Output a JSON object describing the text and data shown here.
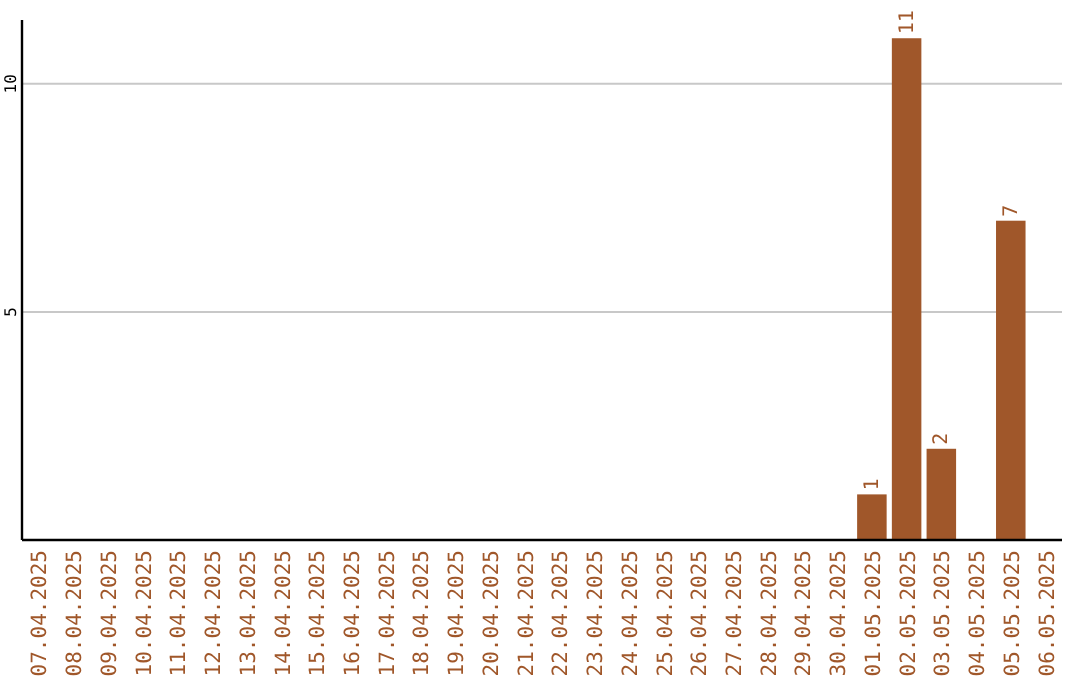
{
  "chart_data": {
    "type": "bar",
    "categories": [
      "07.04.2025",
      "08.04.2025",
      "09.04.2025",
      "10.04.2025",
      "11.04.2025",
      "12.04.2025",
      "13.04.2025",
      "14.04.2025",
      "15.04.2025",
      "16.04.2025",
      "17.04.2025",
      "18.04.2025",
      "19.04.2025",
      "20.04.2025",
      "21.04.2025",
      "22.04.2025",
      "23.04.2025",
      "24.04.2025",
      "25.04.2025",
      "26.04.2025",
      "27.04.2025",
      "28.04.2025",
      "29.04.2025",
      "30.04.2025",
      "01.05.2025",
      "02.05.2025",
      "03.05.2025",
      "04.05.2025",
      "05.05.2025",
      "06.05.2025"
    ],
    "values": [
      null,
      null,
      null,
      null,
      null,
      null,
      null,
      null,
      null,
      null,
      null,
      null,
      null,
      null,
      null,
      null,
      null,
      null,
      null,
      null,
      null,
      null,
      null,
      null,
      1,
      11,
      2,
      null,
      7,
      null
    ],
    "color": "#a0572a",
    "ylim": [
      0,
      11.4
    ],
    "yticks": [
      5,
      10
    ],
    "grid": "y",
    "data_labels": true
  }
}
